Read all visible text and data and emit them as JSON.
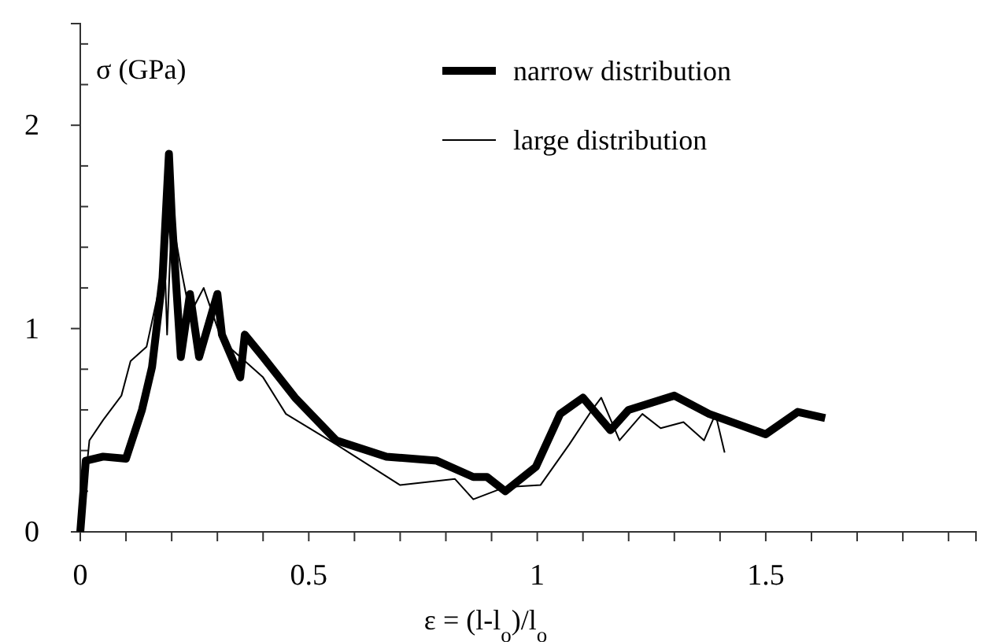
{
  "chart_data": {
    "type": "line",
    "ylabel": "σ (GPa)",
    "xlabel": "ε = (l-l$_{o}$)/l$_{o}$",
    "xlim": [
      0,
      1.96
    ],
    "ylim": [
      0,
      2.5
    ],
    "xticks": [
      0,
      {
        "value": 0.1,
        "label": null
      },
      {
        "value": 0.2,
        "label": null
      },
      {
        "value": 0.3,
        "label": null
      },
      {
        "value": 0.4,
        "label": null
      },
      0.5,
      {
        "value": 0.6,
        "label": null
      },
      {
        "value": 0.7,
        "label": null
      },
      {
        "value": 0.8,
        "label": null
      },
      {
        "value": 0.9,
        "label": null
      },
      1,
      {
        "value": 1.1,
        "label": null
      },
      {
        "value": 1.2,
        "label": null
      },
      {
        "value": 1.3,
        "label": null
      },
      {
        "value": 1.4,
        "label": null
      },
      1.5,
      {
        "value": 1.6,
        "label": null
      },
      {
        "value": 1.7,
        "label": null
      },
      {
        "value": 1.8,
        "label": null
      },
      {
        "value": 1.9,
        "label": null
      }
    ],
    "yticks": [
      0,
      {
        "value": 0.2,
        "label": null
      },
      {
        "value": 0.4,
        "label": null
      },
      {
        "value": 0.6,
        "label": null
      },
      {
        "value": 0.8,
        "label": null
      },
      1,
      {
        "value": 1.2,
        "label": null
      },
      {
        "value": 1.4,
        "label": null
      },
      {
        "value": 1.6,
        "label": null
      },
      {
        "value": 1.8,
        "label": null
      },
      2,
      {
        "value": 2.2,
        "label": null
      },
      {
        "value": 2.4,
        "label": null
      }
    ],
    "grid": false,
    "legend": "top",
    "marker": "none",
    "series": [
      {
        "name": "narrow distribution",
        "color": "#000000",
        "x": [
          0,
          0.012,
          0.05,
          0.1,
          0.135,
          0.157,
          0.18,
          0.194,
          0.2,
          0.22,
          0.24,
          0.26,
          0.3,
          0.31,
          0.35,
          0.36,
          0.4,
          0.47,
          0.56,
          0.67,
          0.78,
          0.86,
          0.89,
          0.93,
          0.997,
          1.05,
          1.1,
          1.16,
          1.2,
          1.3,
          1.376,
          1.5,
          1.57,
          1.63
        ],
        "values": [
          0,
          0.35,
          0.37,
          0.36,
          0.6,
          0.81,
          1.25,
          1.86,
          1.56,
          0.86,
          1.17,
          0.86,
          1.17,
          0.97,
          0.76,
          0.97,
          0.86,
          0.66,
          0.45,
          0.37,
          0.35,
          0.27,
          0.27,
          0.2,
          0.32,
          0.58,
          0.66,
          0.5,
          0.6,
          0.67,
          0.58,
          0.48,
          0.59,
          0.56
        ]
      },
      {
        "name": "large distribution",
        "color": "#000000",
        "x": [
          0,
          0.02,
          0.05,
          0.09,
          0.11,
          0.145,
          0.17,
          0.186,
          0.19,
          0.2,
          0.22,
          0.24,
          0.27,
          0.31,
          0.4,
          0.45,
          0.56,
          0.7,
          0.82,
          0.86,
          0.93,
          1.007,
          1.07,
          1.12,
          1.14,
          1.18,
          1.23,
          1.27,
          1.32,
          1.365,
          1.39,
          1.41
        ],
        "values": [
          0,
          0.45,
          0.55,
          0.67,
          0.84,
          0.91,
          1.17,
          1.25,
          0.97,
          1.56,
          1.3,
          1.07,
          1.2,
          0.94,
          0.76,
          0.58,
          0.43,
          0.23,
          0.26,
          0.16,
          0.22,
          0.23,
          0.43,
          0.6,
          0.66,
          0.45,
          0.58,
          0.51,
          0.54,
          0.45,
          0.58,
          0.39
        ]
      }
    ]
  }
}
